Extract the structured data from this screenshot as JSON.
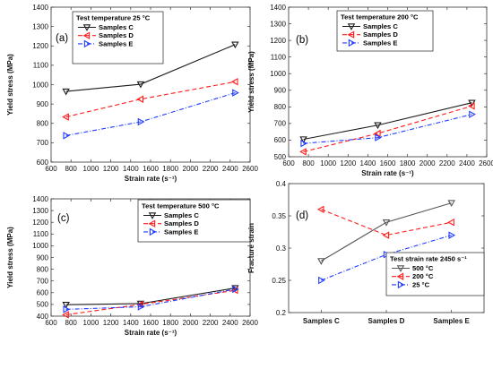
{
  "chart_data": [
    {
      "panel": "(a)",
      "type": "line",
      "xlabel": "Strain rate (s⁻¹)",
      "ylabel": "Yield stress (MPa)",
      "xlim": [
        600,
        2600
      ],
      "ylim": [
        600,
        1400
      ],
      "xticks": [
        600,
        800,
        1000,
        1200,
        1400,
        1600,
        1800,
        2000,
        2200,
        2400,
        2600
      ],
      "yticks": [
        600,
        700,
        800,
        900,
        1000,
        1100,
        1200,
        1300,
        1400
      ],
      "legend_title": "Test temperature 25 °C",
      "legend_position": "top-left",
      "series": [
        {
          "name": "Samples C",
          "x": [
            750,
            1500,
            2450
          ],
          "values": [
            965,
            1002,
            1207
          ],
          "color": "#1a1a1a",
          "dash": "",
          "marker": "tri-down"
        },
        {
          "name": "Samples D",
          "x": [
            750,
            1500,
            2450
          ],
          "values": [
            833,
            925,
            1015
          ],
          "color": "#ff1a1a",
          "dash": "5,3",
          "marker": "tri-left"
        },
        {
          "name": "Samples E",
          "x": [
            750,
            1500,
            2450
          ],
          "values": [
            737,
            808,
            958
          ],
          "color": "#1f3bff",
          "dash": "5,2,1,2",
          "marker": "tri-right"
        }
      ]
    },
    {
      "panel": "(b)",
      "type": "line",
      "xlabel": "Strain rate (s⁻¹)",
      "ylabel": "Yield stress (MPa)",
      "xlim": [
        600,
        2600
      ],
      "ylim": [
        500,
        1400
      ],
      "xticks": [
        600,
        800,
        1000,
        1200,
        1400,
        1600,
        1800,
        2000,
        2200,
        2400,
        2600
      ],
      "yticks": [
        500,
        600,
        700,
        800,
        900,
        1000,
        1100,
        1200,
        1300,
        1400
      ],
      "legend_title": "Test temperature 200 °C",
      "legend_position": "top-center",
      "series": [
        {
          "name": "Samples C",
          "x": [
            750,
            1500,
            2450
          ],
          "values": [
            605,
            690,
            825
          ],
          "color": "#1a1a1a",
          "dash": "",
          "marker": "tri-down"
        },
        {
          "name": "Samples D",
          "x": [
            750,
            1500,
            2450
          ],
          "values": [
            530,
            640,
            805
          ],
          "color": "#ff1a1a",
          "dash": "5,3",
          "marker": "tri-left"
        },
        {
          "name": "Samples E",
          "x": [
            750,
            1500,
            2450
          ],
          "values": [
            580,
            615,
            755
          ],
          "color": "#1f3bff",
          "dash": "5,2,1,2",
          "marker": "tri-right"
        }
      ]
    },
    {
      "panel": "(c)",
      "type": "line",
      "xlabel": "Strain rate (s⁻¹)",
      "ylabel": "Yield stress (MPa)",
      "xlim": [
        600,
        2600
      ],
      "ylim": [
        400,
        1400
      ],
      "xticks": [
        600,
        800,
        1000,
        1200,
        1400,
        1600,
        1800,
        2000,
        2200,
        2400,
        2600
      ],
      "yticks": [
        400,
        500,
        600,
        700,
        800,
        900,
        1000,
        1100,
        1200,
        1300,
        1400
      ],
      "legend_title": "Test temperature 500 °C",
      "legend_position": "top-right",
      "series": [
        {
          "name": "Samples C",
          "x": [
            750,
            1500,
            2450
          ],
          "values": [
            498,
            507,
            640
          ],
          "color": "#1a1a1a",
          "dash": "",
          "marker": "tri-down"
        },
        {
          "name": "Samples D",
          "x": [
            750,
            1500,
            2450
          ],
          "values": [
            412,
            500,
            620
          ],
          "color": "#ff1a1a",
          "dash": "5,3",
          "marker": "tri-left"
        },
        {
          "name": "Samples E",
          "x": [
            750,
            1500,
            2450
          ],
          "values": [
            458,
            480,
            630
          ],
          "color": "#1f3bff",
          "dash": "5,2,1,2",
          "marker": "tri-right"
        }
      ]
    },
    {
      "panel": "(d)",
      "type": "line",
      "xlabel": "",
      "ylabel": "Fracture strain",
      "categories": [
        "Samples C",
        "Samples D",
        "Samples E"
      ],
      "ylim": [
        0.2,
        0.4
      ],
      "yticks": [
        0.2,
        0.25,
        0.3,
        0.35,
        0.4
      ],
      "legend_title": "Test strain rate 2450 s⁻¹",
      "legend_position": "bottom-right",
      "series": [
        {
          "name": "500 °C",
          "values": [
            0.28,
            0.34,
            0.37
          ],
          "color": "#555555",
          "dash": "",
          "marker": "tri-down"
        },
        {
          "name": "200 °C",
          "values": [
            0.36,
            0.32,
            0.34
          ],
          "color": "#ff1a1a",
          "dash": "5,3",
          "marker": "tri-left"
        },
        {
          "name": "25 °C",
          "values": [
            0.25,
            0.29,
            0.32
          ],
          "color": "#1f3bff",
          "dash": "5,2,1,2",
          "marker": "tri-right"
        }
      ]
    }
  ]
}
